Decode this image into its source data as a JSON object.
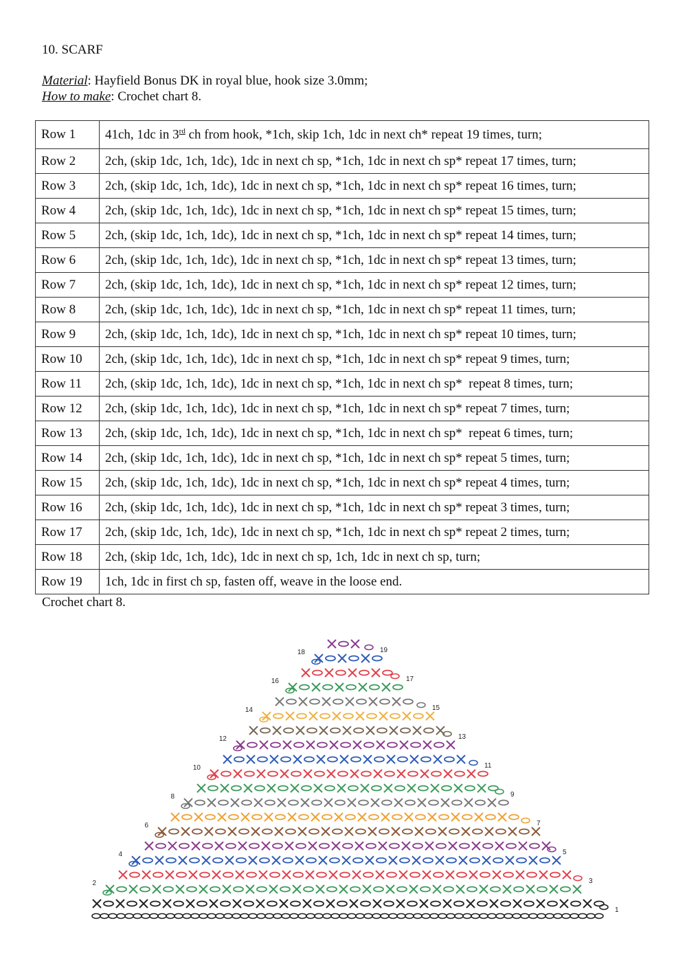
{
  "title": "10. SCARF",
  "material": {
    "label": "Material",
    "text": ": Hayfield Bonus DK in royal blue, hook size 3.0mm;"
  },
  "how": {
    "label": "How to make",
    "text": ": Crochet chart 8."
  },
  "table": {
    "rows": [
      [
        "Row 1",
        {
          "before": "41ch, 1dc in 3",
          "sup": "rd",
          "after": " ch from hook, *1ch, skip 1ch, 1dc in next ch* repeat 19 times, turn;"
        }
      ],
      [
        "Row 2",
        "2ch, (skip 1dc, 1ch, 1dc), 1dc in next ch sp, *1ch, 1dc in next ch sp* repeat 17 times, turn;"
      ],
      [
        "Row 3",
        "2ch, (skip 1dc, 1ch, 1dc), 1dc in next ch sp, *1ch, 1dc in next ch sp* repeat 16 times, turn;"
      ],
      [
        "Row 4",
        "2ch, (skip 1dc, 1ch, 1dc), 1dc in next ch sp, *1ch, 1dc in next ch sp* repeat 15 times, turn;"
      ],
      [
        "Row 5",
        "2ch, (skip 1dc, 1ch, 1dc), 1dc in next ch sp, *1ch, 1dc in next ch sp* repeat 14 times, turn;"
      ],
      [
        "Row 6",
        "2ch, (skip 1dc, 1ch, 1dc), 1dc in next ch sp, *1ch, 1dc in next ch sp* repeat 13 times, turn;"
      ],
      [
        "Row 7",
        "2ch, (skip 1dc, 1ch, 1dc), 1dc in next ch sp, *1ch, 1dc in next ch sp* repeat 12 times, turn;"
      ],
      [
        "Row 8",
        "2ch, (skip 1dc, 1ch, 1dc), 1dc in next ch sp, *1ch, 1dc in next ch sp* repeat 11 times, turn;"
      ],
      [
        "Row 9",
        "2ch, (skip 1dc, 1ch, 1dc), 1dc in next ch sp, *1ch, 1dc in next ch sp* repeat 10 times, turn;"
      ],
      [
        "Row 10",
        "2ch, (skip 1dc, 1ch, 1dc), 1dc in next ch sp, *1ch, 1dc in next ch sp* repeat 9 times, turn;"
      ],
      [
        "Row 11",
        "2ch, (skip 1dc, 1ch, 1dc), 1dc in next ch sp, *1ch, 1dc in next ch sp*  repeat 8 times, turn;"
      ],
      [
        "Row 12",
        "2ch, (skip 1dc, 1ch, 1dc), 1dc in next ch sp, *1ch, 1dc in next ch sp* repeat 7 times, turn;"
      ],
      [
        "Row 13",
        "2ch, (skip 1dc, 1ch, 1dc), 1dc in next ch sp, *1ch, 1dc in next ch sp*  repeat 6 times, turn;"
      ],
      [
        "Row 14",
        "2ch, (skip 1dc, 1ch, 1dc), 1dc in next ch sp, *1ch, 1dc in next ch sp* repeat 5 times, turn;"
      ],
      [
        "Row 15",
        "2ch, (skip 1dc, 1ch, 1dc), 1dc in next ch sp, *1ch, 1dc in next ch sp* repeat 4 times, turn;"
      ],
      [
        "Row 16",
        "2ch, (skip 1dc, 1ch, 1dc), 1dc in next ch sp, *1ch, 1dc in next ch sp* repeat 3 times, turn;"
      ],
      [
        "Row 17",
        "2ch, (skip 1dc, 1ch, 1dc), 1dc in next ch sp, *1ch, 1dc in next ch sp* repeat 2 times, turn;"
      ],
      [
        "Row 18",
        "2ch, (skip 1dc, 1ch, 1dc), 1dc in next ch sp, 1ch, 1dc in next ch sp, turn;"
      ],
      [
        "Row 19",
        "1ch, 1dc in first ch sp, fasten off, weave in the loose end."
      ]
    ]
  },
  "caption": "Crochet chart 8.",
  "chart": {
    "row_labels": [
      "1",
      "2",
      "3",
      "4",
      "5",
      "6",
      "7",
      "8",
      "9",
      "10",
      "11",
      "12",
      "13",
      "14",
      "15",
      "16",
      "17",
      "18",
      "19"
    ]
  }
}
